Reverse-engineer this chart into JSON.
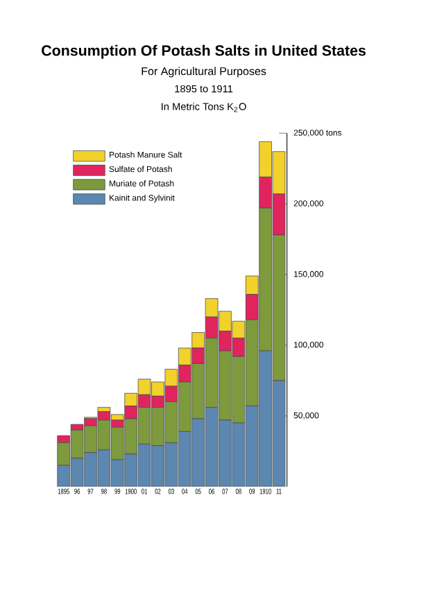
{
  "chart_data": {
    "type": "bar",
    "stacked": true,
    "title": "Consumption Of Potash Salts in United States",
    "subtitle": "For Agricultural Purposes",
    "annotations": [
      "1895 to 1911",
      "In Metric Tons K$_{2}$O"
    ],
    "categories": [
      "1895",
      "96",
      "97",
      "98",
      "99",
      "1900",
      "01",
      "02",
      "03",
      "04",
      "05",
      "06",
      "07",
      "08",
      "09",
      "1910",
      "11"
    ],
    "series": [
      {
        "name": "Kainit and Sylvinit",
        "color": "#5b87b0",
        "values": [
          15000,
          20000,
          24000,
          26000,
          19000,
          23000,
          30000,
          29000,
          31000,
          39000,
          48000,
          56000,
          47000,
          45000,
          57000,
          96000,
          75000
        ]
      },
      {
        "name": "Muriate of Potash",
        "color": "#7d9a3c",
        "values": [
          16000,
          20000,
          19000,
          21000,
          23000,
          25000,
          26000,
          27000,
          29000,
          35000,
          39000,
          49000,
          49000,
          47000,
          61000,
          101000,
          103000
        ]
      },
      {
        "name": "Sulfate of Potash",
        "color": "#e0245e",
        "values": [
          5000,
          4000,
          5000,
          6000,
          5000,
          9000,
          9000,
          8000,
          11000,
          12000,
          11000,
          15000,
          14000,
          13000,
          18000,
          22000,
          29000
        ]
      },
      {
        "name": "Potash Manure Salt",
        "color": "#f2d22a",
        "values": [
          0,
          0,
          1000,
          3000,
          4000,
          9000,
          11000,
          10000,
          12000,
          12000,
          11000,
          13000,
          14000,
          12000,
          13000,
          25000,
          30000
        ]
      }
    ],
    "ylim": [
      0,
      250000
    ],
    "yticks": [
      {
        "value": 50000,
        "label": "50,000"
      },
      {
        "value": 100000,
        "label": "100,000"
      },
      {
        "value": 150000,
        "label": "150,000"
      },
      {
        "value": 200000,
        "label": "200,000"
      },
      {
        "value": 250000,
        "label": "250,000 tons"
      }
    ],
    "legend": "top left"
  }
}
